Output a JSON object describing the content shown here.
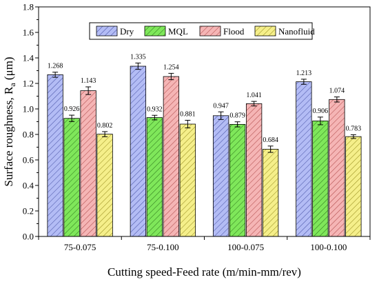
{
  "chart_data": {
    "type": "bar",
    "title": "",
    "xlabel": "Cutting speed-Feed rate (m/min-mm/rev)",
    "ylabel_main": "Surface roughness, R",
    "ylabel_sub": "a",
    "ylabel_unit": " (μm)",
    "ylim": [
      0,
      1.8
    ],
    "yticks": [
      "0.0",
      "0.2",
      "0.4",
      "0.6",
      "0.8",
      "1.0",
      "1.2",
      "1.4",
      "1.6",
      "1.8"
    ],
    "categories": [
      "75-0.075",
      "75-0.100",
      "100-0.075",
      "100-0.100"
    ],
    "legend_position": "top-center",
    "grid": false,
    "series": [
      {
        "name": "Dry",
        "color": "#b3bcf5",
        "hatch": "#4a55a8",
        "values": [
          1.268,
          1.335,
          0.947,
          1.213
        ],
        "labels": [
          "1.268",
          "1.335",
          "0.947",
          "1.213"
        ],
        "errors": [
          0.02,
          0.025,
          0.03,
          0.02
        ]
      },
      {
        "name": "MQL",
        "color": "#7fe75a",
        "hatch": "#2f7a1e",
        "values": [
          0.926,
          0.932,
          0.879,
          0.906
        ],
        "labels": [
          "0.926",
          "0.932",
          "0.879",
          "0.906"
        ],
        "errors": [
          0.025,
          0.018,
          0.02,
          0.03
        ]
      },
      {
        "name": "Flood",
        "color": "#f5b5b5",
        "hatch": "#b04a4a",
        "values": [
          1.143,
          1.254,
          1.041,
          1.074
        ],
        "labels": [
          "1.143",
          "1.254",
          "1.041",
          "1.074"
        ],
        "errors": [
          0.03,
          0.025,
          0.018,
          0.02
        ]
      },
      {
        "name": "Nanofluid",
        "color": "#f5ef8a",
        "hatch": "#9a9020",
        "values": [
          0.802,
          0.881,
          0.684,
          0.783
        ],
        "labels": [
          "0.802",
          "0.881",
          "0.684",
          "0.783"
        ],
        "errors": [
          0.02,
          0.03,
          0.025,
          0.015
        ]
      }
    ]
  }
}
